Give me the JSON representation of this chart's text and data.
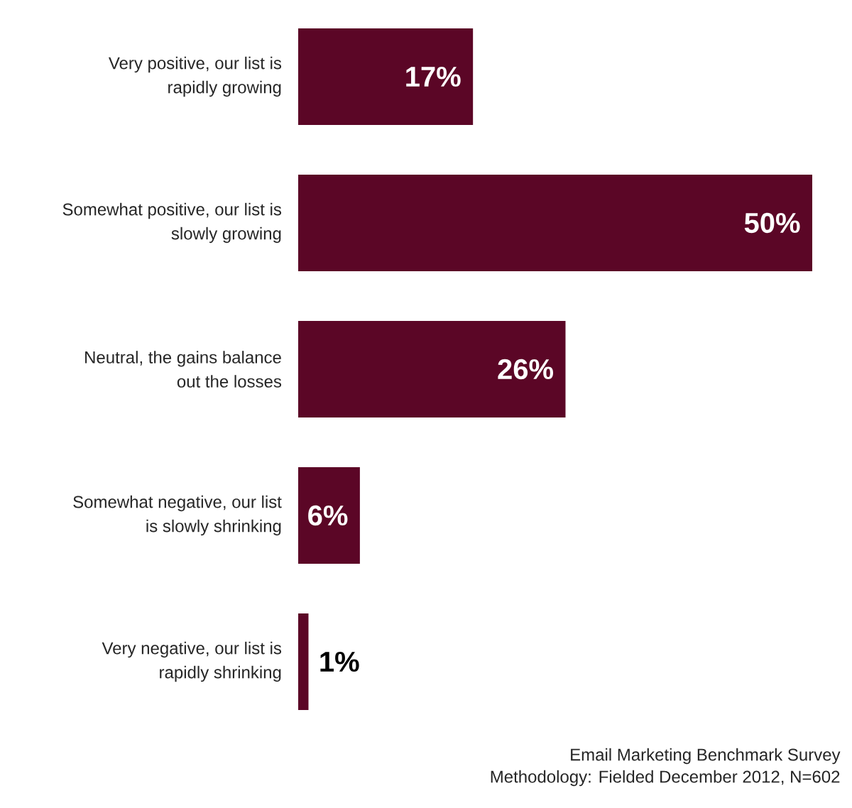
{
  "chart_data": {
    "type": "bar",
    "orientation": "horizontal",
    "categories": [
      "Very positive, our list is rapidly growing",
      "Somewhat positive, our list is slowly growing",
      "Neutral, the gains balance out the losses",
      "Somewhat negative, our list is slowly shrinking",
      "Very negative, our list is rapidly shrinking"
    ],
    "values": [
      17,
      50,
      26,
      6,
      1
    ],
    "value_labels": [
      "17%",
      "50%",
      "26%",
      "6%",
      "1%"
    ],
    "color": "#5b0626",
    "annotations": [
      "Email Marketing Benchmark Survey",
      "Methodology: Fielded December 2012, N=602"
    ]
  }
}
